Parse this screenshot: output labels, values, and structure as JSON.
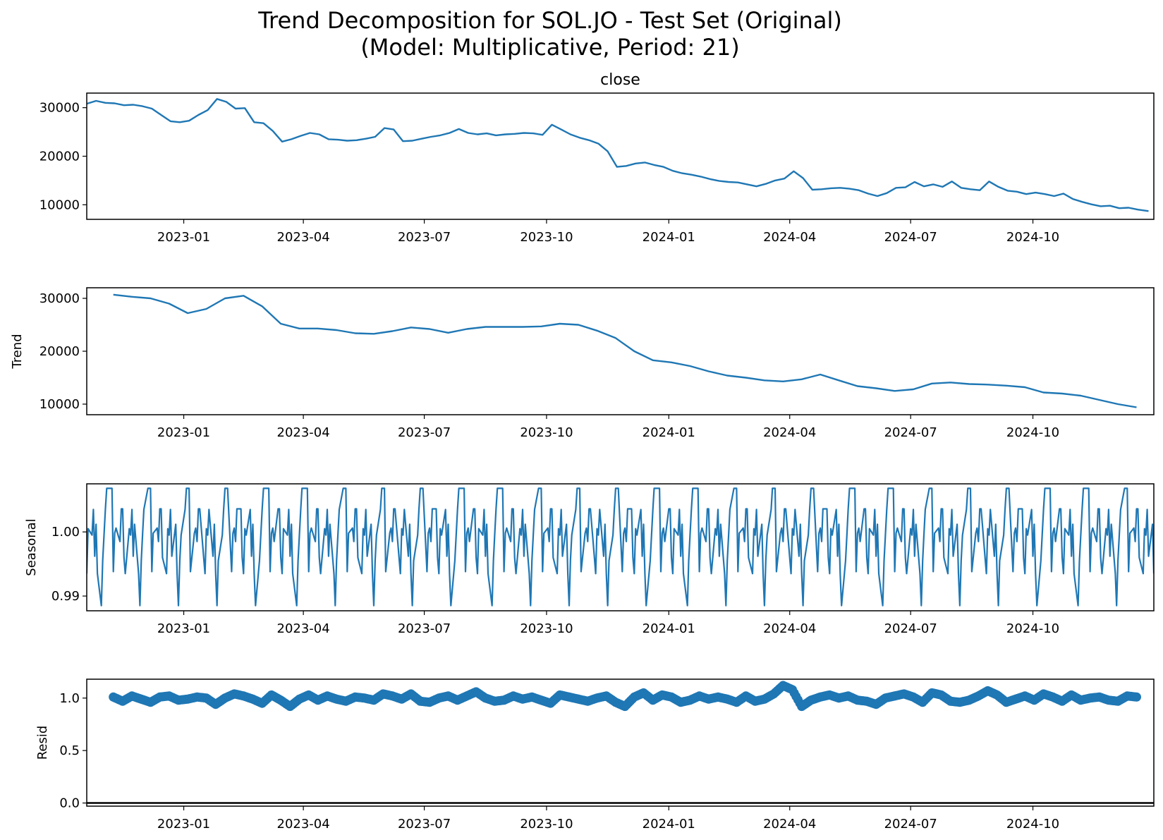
{
  "figure": {
    "title_line1": "Trend Decomposition for SOL.JO - Test Set (Original)",
    "title_line2": "(Model: Multiplicative, Period: 21)"
  },
  "chart_data": [
    {
      "type": "line",
      "title": "close",
      "ylabel": "",
      "xlim": [
        "2022-10-20",
        "2024-12-31"
      ],
      "ylim": [
        7000,
        33000
      ],
      "yticks": [
        10000,
        20000,
        30000
      ],
      "xticks": [
        "2023-01",
        "2023-04",
        "2023-07",
        "2023-10",
        "2024-01",
        "2024-04",
        "2024-07",
        "2024-10"
      ],
      "series": [
        {
          "color": "#1f77b4",
          "x": [
            "2022-10-20",
            "2022-10-27",
            "2022-11-03",
            "2022-11-10",
            "2022-11-17",
            "2022-11-24",
            "2022-12-01",
            "2022-12-08",
            "2022-12-15",
            "2022-12-22",
            "2022-12-29",
            "2023-01-05",
            "2023-01-12",
            "2023-01-19",
            "2023-01-26",
            "2023-02-02",
            "2023-02-09",
            "2023-02-16",
            "2023-02-23",
            "2023-03-02",
            "2023-03-09",
            "2023-03-16",
            "2023-03-23",
            "2023-03-30",
            "2023-04-06",
            "2023-04-13",
            "2023-04-20",
            "2023-04-27",
            "2023-05-04",
            "2023-05-11",
            "2023-05-18",
            "2023-05-25",
            "2023-06-01",
            "2023-06-08",
            "2023-06-15",
            "2023-06-22",
            "2023-06-29",
            "2023-07-06",
            "2023-07-13",
            "2023-07-20",
            "2023-07-27",
            "2023-08-03",
            "2023-08-10",
            "2023-08-17",
            "2023-08-24",
            "2023-08-31",
            "2023-09-07",
            "2023-09-14",
            "2023-09-21",
            "2023-09-28",
            "2023-10-05",
            "2023-10-12",
            "2023-10-19",
            "2023-10-26",
            "2023-11-02",
            "2023-11-09",
            "2023-11-16",
            "2023-11-23",
            "2023-11-30",
            "2023-12-07",
            "2023-12-14",
            "2023-12-21",
            "2023-12-28",
            "2024-01-04",
            "2024-01-11",
            "2024-01-18",
            "2024-01-25",
            "2024-02-01",
            "2024-02-08",
            "2024-02-15",
            "2024-02-22",
            "2024-02-29",
            "2024-03-07",
            "2024-03-14",
            "2024-03-21",
            "2024-03-28",
            "2024-04-04",
            "2024-04-11",
            "2024-04-18",
            "2024-04-25",
            "2024-05-02",
            "2024-05-09",
            "2024-05-16",
            "2024-05-23",
            "2024-05-30",
            "2024-06-06",
            "2024-06-13",
            "2024-06-20",
            "2024-06-27",
            "2024-07-04",
            "2024-07-11",
            "2024-07-18",
            "2024-07-25",
            "2024-08-01",
            "2024-08-08",
            "2024-08-15",
            "2024-08-22",
            "2024-08-29",
            "2024-09-05",
            "2024-09-12",
            "2024-09-19",
            "2024-09-26",
            "2024-10-03",
            "2024-10-10",
            "2024-10-17",
            "2024-10-24",
            "2024-10-31",
            "2024-11-07",
            "2024-11-14",
            "2024-11-21",
            "2024-11-28",
            "2024-12-05",
            "2024-12-12",
            "2024-12-19",
            "2024-12-27"
          ],
          "y": [
            30800,
            31400,
            31000,
            30900,
            30500,
            30600,
            30300,
            29800,
            28500,
            27200,
            27000,
            27300,
            28500,
            29500,
            31800,
            31200,
            29800,
            29900,
            27000,
            26800,
            25200,
            23000,
            23500,
            24200,
            24800,
            24500,
            23500,
            23400,
            23200,
            23300,
            23600,
            24000,
            25800,
            25500,
            23100,
            23200,
            23600,
            24000,
            24300,
            24800,
            25600,
            24800,
            24500,
            24700,
            24300,
            24500,
            24600,
            24800,
            24700,
            24400,
            26500,
            25500,
            24500,
            23800,
            23300,
            22600,
            21000,
            17800,
            18000,
            18500,
            18700,
            18200,
            17800,
            17000,
            16500,
            16200,
            15800,
            15300,
            14900,
            14700,
            14600,
            14200,
            13800,
            14300,
            15000,
            15400,
            16900,
            15500,
            13100,
            13200,
            13400,
            13500,
            13300,
            13000,
            12300,
            11800,
            12400,
            13500,
            13600,
            14700,
            13800,
            14200,
            13700,
            14800,
            13500,
            13200,
            13000,
            14800,
            13700,
            12900,
            12700,
            12200,
            12500,
            12200,
            11800,
            12300,
            11200,
            10600,
            10100,
            9700,
            9800,
            9300,
            9400,
            9000,
            8700
          ]
        }
      ]
    },
    {
      "type": "line",
      "title": "",
      "ylabel": "Trend",
      "xlim": [
        "2022-10-20",
        "2024-12-31"
      ],
      "ylim": [
        8000,
        32000
      ],
      "yticks": [
        10000,
        20000,
        30000
      ],
      "xticks": [
        "2023-01",
        "2023-04",
        "2023-07",
        "2023-10",
        "2024-01",
        "2024-04",
        "2024-07",
        "2024-10"
      ],
      "series": [
        {
          "color": "#1f77b4",
          "x": [
            "2022-11-09",
            "2022-11-23",
            "2022-12-07",
            "2022-12-21",
            "2023-01-04",
            "2023-01-18",
            "2023-02-01",
            "2023-02-15",
            "2023-03-01",
            "2023-03-15",
            "2023-03-29",
            "2023-04-12",
            "2023-04-26",
            "2023-05-10",
            "2023-05-24",
            "2023-06-07",
            "2023-06-21",
            "2023-07-05",
            "2023-07-19",
            "2023-08-02",
            "2023-08-16",
            "2023-08-30",
            "2023-09-13",
            "2023-09-27",
            "2023-10-11",
            "2023-10-25",
            "2023-11-08",
            "2023-11-22",
            "2023-12-06",
            "2023-12-20",
            "2024-01-03",
            "2024-01-17",
            "2024-01-31",
            "2024-02-14",
            "2024-02-28",
            "2024-03-13",
            "2024-03-27",
            "2024-04-10",
            "2024-04-24",
            "2024-05-08",
            "2024-05-22",
            "2024-06-05",
            "2024-06-19",
            "2024-07-03",
            "2024-07-17",
            "2024-07-31",
            "2024-08-14",
            "2024-08-28",
            "2024-09-11",
            "2024-09-25",
            "2024-10-09",
            "2024-10-23",
            "2024-11-06",
            "2024-11-20",
            "2024-12-04",
            "2024-12-18"
          ],
          "y": [
            30700,
            30300,
            30000,
            29000,
            27200,
            28000,
            30000,
            30500,
            28500,
            25200,
            24300,
            24300,
            24000,
            23400,
            23300,
            23800,
            24500,
            24200,
            23500,
            24200,
            24600,
            24600,
            24600,
            24700,
            25200,
            25000,
            23900,
            22500,
            20000,
            18300,
            17900,
            17200,
            16200,
            15400,
            15000,
            14500,
            14300,
            14700,
            15600,
            14500,
            13400,
            13000,
            12500,
            12800,
            13900,
            14100,
            13800,
            13700,
            13500,
            13200,
            12200,
            12000,
            11600,
            10800,
            10000,
            9400
          ]
        }
      ]
    },
    {
      "type": "line",
      "title": "",
      "ylabel": "Seasonal",
      "xlim": [
        "2022-10-20",
        "2024-12-31"
      ],
      "ylim": [
        0.9877,
        1.0075
      ],
      "yticks": [
        0.99,
        1.0
      ],
      "xticks": [
        "2023-01",
        "2023-04",
        "2023-07",
        "2023-10",
        "2024-01",
        "2024-04",
        "2024-07",
        "2024-10"
      ],
      "period": 21,
      "start": "2022-10-20",
      "end": "2024-12-31",
      "cycle_values": [
        0.9935,
        1.0005,
        0.9995,
        1.0035,
        0.9962,
        1.0012,
        0.9935,
        0.9885,
        0.9955,
        0.9995,
        1.0035,
        1.0068,
        1.0068,
        1.0068,
        0.9938,
        0.9998,
        1.0006,
        0.9985,
        1.0036,
        1.0036,
        0.996
      ],
      "series": [
        {
          "color": "#1f77b4"
        }
      ]
    },
    {
      "type": "scatter",
      "title": "",
      "ylabel": "Resid",
      "xlim": [
        "2022-10-20",
        "2024-12-31"
      ],
      "ylim": [
        -0.03,
        1.18
      ],
      "yticks": [
        0.0,
        0.5,
        1.0
      ],
      "ytick_labels": [
        "0.0",
        "0.5",
        "1.0"
      ],
      "xticks": [
        "2023-01",
        "2023-04",
        "2023-07",
        "2023-10",
        "2024-01",
        "2024-04",
        "2024-07",
        "2024-10"
      ],
      "baseline": 0,
      "series": [
        {
          "color": "#1f77b4",
          "x": [
            "2022-11-09",
            "2022-11-16",
            "2022-11-23",
            "2022-11-30",
            "2022-12-07",
            "2022-12-14",
            "2022-12-21",
            "2022-12-28",
            "2023-01-04",
            "2023-01-11",
            "2023-01-18",
            "2023-01-25",
            "2023-02-01",
            "2023-02-08",
            "2023-02-15",
            "2023-02-22",
            "2023-03-01",
            "2023-03-08",
            "2023-03-15",
            "2023-03-22",
            "2023-03-29",
            "2023-04-05",
            "2023-04-12",
            "2023-04-19",
            "2023-04-26",
            "2023-05-03",
            "2023-05-10",
            "2023-05-17",
            "2023-05-24",
            "2023-05-31",
            "2023-06-07",
            "2023-06-14",
            "2023-06-21",
            "2023-06-28",
            "2023-07-05",
            "2023-07-12",
            "2023-07-19",
            "2023-07-26",
            "2023-08-02",
            "2023-08-09",
            "2023-08-16",
            "2023-08-23",
            "2023-08-30",
            "2023-09-06",
            "2023-09-13",
            "2023-09-20",
            "2023-09-27",
            "2023-10-04",
            "2023-10-11",
            "2023-10-18",
            "2023-10-25",
            "2023-11-01",
            "2023-11-08",
            "2023-11-15",
            "2023-11-22",
            "2023-11-29",
            "2023-12-06",
            "2023-12-13",
            "2023-12-20",
            "2023-12-27",
            "2024-01-03",
            "2024-01-10",
            "2024-01-17",
            "2024-01-24",
            "2024-01-31",
            "2024-02-07",
            "2024-02-14",
            "2024-02-21",
            "2024-02-28",
            "2024-03-06",
            "2024-03-13",
            "2024-03-20",
            "2024-03-27",
            "2024-04-03",
            "2024-04-10",
            "2024-04-17",
            "2024-04-24",
            "2024-05-01",
            "2024-05-08",
            "2024-05-15",
            "2024-05-22",
            "2024-05-29",
            "2024-06-05",
            "2024-06-12",
            "2024-06-19",
            "2024-06-26",
            "2024-07-03",
            "2024-07-10",
            "2024-07-17",
            "2024-07-24",
            "2024-07-31",
            "2024-08-07",
            "2024-08-14",
            "2024-08-21",
            "2024-08-28",
            "2024-09-04",
            "2024-09-11",
            "2024-09-18",
            "2024-09-25",
            "2024-10-02",
            "2024-10-09",
            "2024-10-16",
            "2024-10-23",
            "2024-10-30",
            "2024-11-06",
            "2024-11-13",
            "2024-11-20",
            "2024-11-27",
            "2024-12-04",
            "2024-12-11",
            "2024-12-18"
          ],
          "y": [
            1.01,
            0.97,
            1.02,
            0.99,
            0.96,
            1.01,
            1.02,
            0.98,
            0.99,
            1.01,
            1.0,
            0.94,
            1.0,
            1.04,
            1.02,
            0.99,
            0.95,
            1.03,
            0.98,
            0.92,
            0.99,
            1.03,
            0.98,
            1.02,
            0.99,
            0.97,
            1.01,
            1.0,
            0.98,
            1.04,
            1.02,
            0.99,
            1.04,
            0.97,
            0.96,
            1.0,
            1.02,
            0.98,
            1.02,
            1.06,
            1.0,
            0.97,
            0.98,
            1.02,
            0.99,
            1.01,
            0.98,
            0.95,
            1.03,
            1.01,
            0.99,
            0.97,
            1.0,
            1.02,
            0.96,
            0.92,
            1.01,
            1.05,
            0.98,
            1.03,
            1.01,
            0.96,
            0.98,
            1.02,
            0.99,
            1.01,
            0.99,
            0.96,
            1.02,
            0.97,
            0.99,
            1.04,
            1.12,
            1.08,
            0.92,
            0.98,
            1.01,
            1.03,
            1.0,
            1.02,
            0.98,
            0.97,
            0.94,
            1.0,
            1.02,
            1.04,
            1.01,
            0.96,
            1.05,
            1.03,
            0.97,
            0.96,
            0.98,
            1.02,
            1.07,
            1.03,
            0.96,
            0.99,
            1.02,
            0.98,
            1.04,
            1.01,
            0.97,
            1.03,
            0.98,
            1.0,
            1.01,
            0.98,
            0.97,
            1.02,
            1.01
          ]
        }
      ]
    }
  ]
}
